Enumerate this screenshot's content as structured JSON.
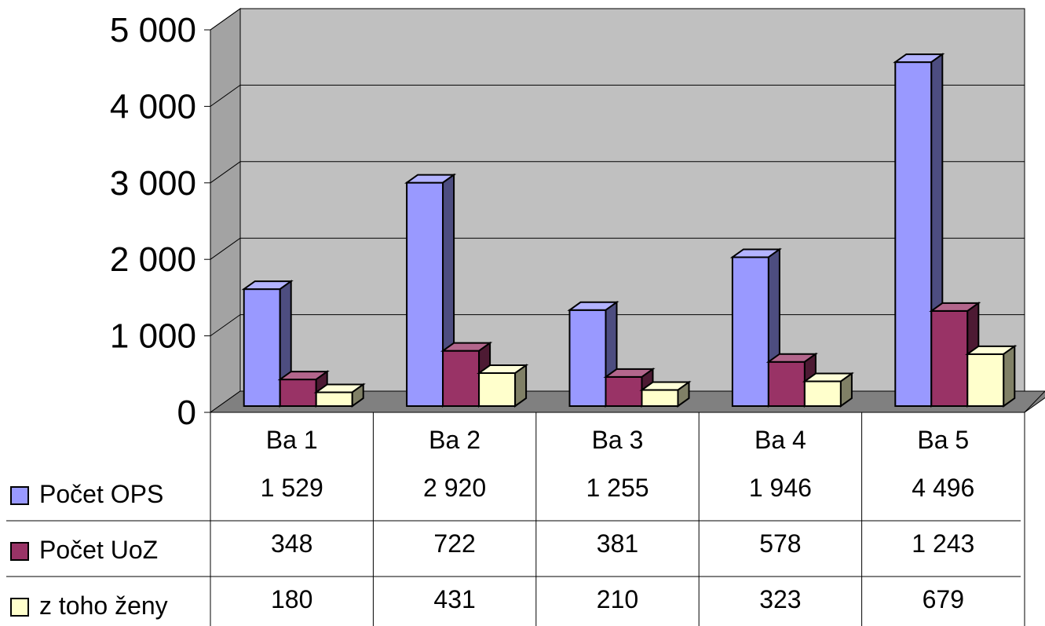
{
  "chart_data": {
    "type": "bar",
    "style": "3d-clustered-column-with-data-table",
    "categories": [
      "Ba 1",
      "Ba 2",
      "Ba 3",
      "Ba 4",
      "Ba 5"
    ],
    "series": [
      {
        "name": "Počet OPS",
        "values": [
          1529,
          2920,
          1255,
          1946,
          4496
        ],
        "labels": [
          "1 529",
          "2 920",
          "1 255",
          "1 946",
          "4 496"
        ],
        "color": "#9999ff"
      },
      {
        "name": "Počet UoZ",
        "values": [
          348,
          722,
          381,
          578,
          1243
        ],
        "labels": [
          "348",
          "722",
          "381",
          "578",
          "1 243"
        ],
        "color": "#993366"
      },
      {
        "name": "z toho ženy",
        "values": [
          180,
          431,
          210,
          323,
          679
        ],
        "labels": [
          "180",
          "431",
          "210",
          "323",
          "679"
        ],
        "color": "#ffffcc"
      }
    ],
    "ylim": [
      0,
      5000
    ],
    "yticks": [
      0,
      1000,
      2000,
      3000,
      4000,
      5000
    ],
    "ytick_labels": [
      "0",
      "1 000",
      "2 000",
      "3 000",
      "4 000",
      "5 000"
    ],
    "grid": true,
    "wall_color": "#c0c0c0",
    "floor_color": "#808080",
    "legend": "data-table-left"
  }
}
